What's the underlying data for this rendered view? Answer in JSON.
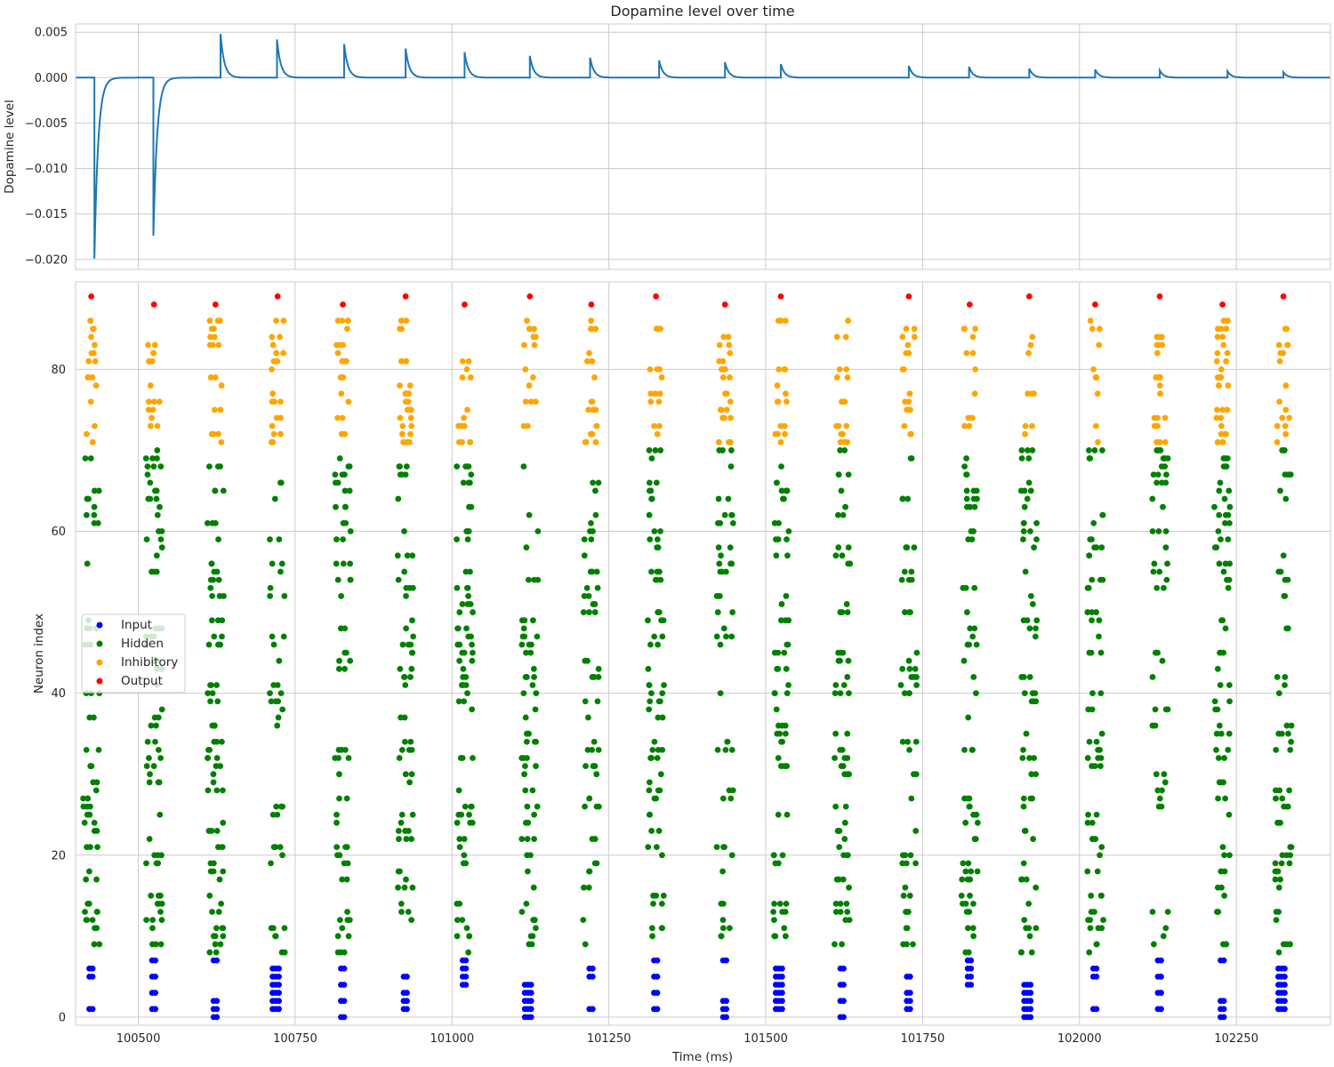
{
  "chart_data": [
    {
      "type": "line",
      "title": "Dopamine level over time",
      "ylabel": "Dopamine level",
      "xlim": [
        100400,
        102400
      ],
      "ylim": [
        -0.0211,
        0.0059
      ],
      "yticks": [
        "0.005",
        "0.000",
        "−0.005",
        "−0.010",
        "−0.015",
        "−0.020"
      ],
      "ytick_values": [
        0.005,
        0,
        -0.005,
        -0.01,
        -0.015,
        -0.02
      ],
      "grid": true,
      "color": "#1f77b4",
      "decay_tau_ms": 6,
      "events": [
        {
          "t": 100430,
          "amp": -0.0199
        },
        {
          "t": 100524,
          "amp": -0.0174
        },
        {
          "t": 100631,
          "amp": 0.0048
        },
        {
          "t": 100721,
          "amp": 0.0042
        },
        {
          "t": 100828,
          "amp": 0.0037
        },
        {
          "t": 100926,
          "amp": 0.0032
        },
        {
          "t": 101020,
          "amp": 0.0028
        },
        {
          "t": 101124,
          "amp": 0.0024
        },
        {
          "t": 101220,
          "amp": 0.0022
        },
        {
          "t": 101330,
          "amp": 0.0019
        },
        {
          "t": 101435,
          "amp": 0.0017
        },
        {
          "t": 101524,
          "amp": 0.0015
        },
        {
          "t": 101728,
          "amp": 0.0013
        },
        {
          "t": 101824,
          "amp": 0.0012
        },
        {
          "t": 101920,
          "amp": 0.001
        },
        {
          "t": 102025,
          "amp": 0.0009
        },
        {
          "t": 102128,
          "amp": 0.0008
        },
        {
          "t": 102236,
          "amp": 0.0007
        },
        {
          "t": 102325,
          "amp": 0.0006
        }
      ]
    },
    {
      "type": "scatter",
      "xlabel": "Time (ms)",
      "ylabel": "Neuron index",
      "xlim": [
        100400,
        102400
      ],
      "ylim": [
        -1,
        90.8
      ],
      "xticks": [
        "100500",
        "100750",
        "101000",
        "101250",
        "101500",
        "101750",
        "102000",
        "102250"
      ],
      "xtick_values": [
        100500,
        100750,
        101000,
        101250,
        101500,
        101750,
        102000,
        102250
      ],
      "yticks": [
        "0",
        "20",
        "40",
        "60",
        "80"
      ],
      "ytick_values": [
        0,
        20,
        40,
        60,
        80
      ],
      "grid": true,
      "legend_position": "center-left",
      "series": [
        {
          "name": "Input",
          "color": "#0000ff",
          "index_range": [
            0,
            7
          ]
        },
        {
          "name": "Hidden",
          "color": "#008000",
          "index_range": [
            8,
            70
          ]
        },
        {
          "name": "Inhibitory",
          "color": "#ffa500",
          "index_range": [
            71,
            87
          ]
        },
        {
          "name": "Output",
          "color": "#ff0000",
          "index_range": [
            88,
            89
          ]
        }
      ],
      "bursts": [
        {
          "t": 100425,
          "output": 89,
          "input": [
            1,
            5,
            6
          ]
        },
        {
          "t": 100525,
          "output": 88,
          "input": [
            1,
            3,
            5,
            7
          ]
        },
        {
          "t": 100623,
          "output": 88,
          "input": [
            0,
            1,
            2,
            7
          ]
        },
        {
          "t": 100722,
          "output": 89,
          "input": [
            1,
            2,
            3,
            4,
            5,
            6
          ]
        },
        {
          "t": 100826,
          "output": 88,
          "input": [
            0,
            2,
            4,
            6
          ]
        },
        {
          "t": 100926,
          "output": 89,
          "input": [
            1,
            2,
            3,
            5
          ]
        },
        {
          "t": 101020,
          "output": 88,
          "input": [
            4,
            5,
            6,
            7
          ]
        },
        {
          "t": 101124,
          "output": 89,
          "input": [
            0,
            1,
            2,
            3,
            4
          ]
        },
        {
          "t": 101222,
          "output": 88,
          "input": [
            1,
            5,
            6
          ]
        },
        {
          "t": 101325,
          "output": 89,
          "input": [
            1,
            3,
            5,
            7
          ]
        },
        {
          "t": 101435,
          "output": 88,
          "input": [
            0,
            1,
            2,
            7
          ]
        },
        {
          "t": 101524,
          "output": 89,
          "input": [
            1,
            2,
            3,
            4,
            5,
            6
          ]
        },
        {
          "t": 101622,
          "output": null,
          "input": [
            0,
            2,
            4,
            6
          ]
        },
        {
          "t": 101728,
          "output": 89,
          "input": [
            1,
            2,
            3,
            5
          ]
        },
        {
          "t": 101825,
          "output": 88,
          "input": [
            4,
            5,
            6,
            7
          ]
        },
        {
          "t": 101920,
          "output": 89,
          "input": [
            0,
            1,
            2,
            3,
            4
          ]
        },
        {
          "t": 102025,
          "output": 88,
          "input": [
            1,
            5,
            6
          ]
        },
        {
          "t": 102128,
          "output": 89,
          "input": [
            1,
            3,
            5,
            7
          ]
        },
        {
          "t": 102228,
          "output": 88,
          "input": [
            0,
            1,
            2,
            7
          ]
        },
        {
          "t": 102325,
          "output": 89,
          "input": [
            1,
            2,
            3,
            4,
            5,
            6
          ]
        }
      ]
    }
  ]
}
